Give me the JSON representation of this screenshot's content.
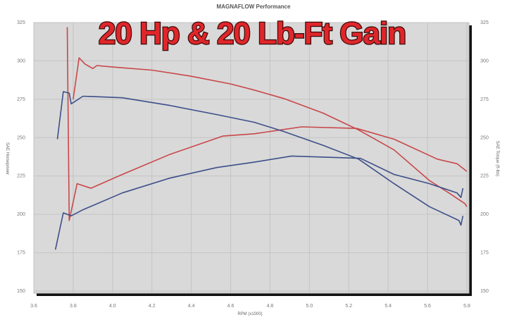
{
  "chart_data": {
    "type": "line",
    "title": "MAGNAFLOW Performance",
    "overlay_text": "20 Hp & 20 Lb-Ft Gain",
    "xlabel": "RPM (x1000)",
    "ylabel_left": "SAE Horsepower",
    "ylabel_right": "SAE Torque (ft-lbs)",
    "xlim": [
      3.6,
      5.8
    ],
    "ylim": [
      150,
      325
    ],
    "xticks": [
      "3.6",
      "3.8",
      "4.0",
      "4.2",
      "4.4",
      "4.6",
      "4.8",
      "5.0",
      "5.2",
      "5.4",
      "5.6",
      "5.8"
    ],
    "yticks": [
      "150",
      "175",
      "200",
      "225",
      "250",
      "275",
      "300",
      "325"
    ],
    "grid": true,
    "colors": {
      "red": "#c9474a",
      "blue": "#3d4f8a",
      "plot_bg": "#d9d9d9"
    },
    "series": [
      {
        "color": "red",
        "points": [
          [
            3.8,
            275
          ],
          [
            3.83,
            302
          ],
          [
            3.86,
            298
          ],
          [
            3.9,
            295
          ],
          [
            3.92,
            297
          ],
          [
            4.0,
            296
          ],
          [
            4.2,
            294
          ],
          [
            4.4,
            290
          ],
          [
            4.6,
            285
          ],
          [
            4.72,
            281
          ],
          [
            4.87,
            275.5
          ],
          [
            5.07,
            266
          ],
          [
            5.25,
            255
          ],
          [
            5.43,
            242
          ],
          [
            5.61,
            222
          ],
          [
            5.72,
            213
          ],
          [
            5.79,
            207
          ],
          [
            5.8,
            205
          ]
        ]
      },
      {
        "color": "red",
        "points": [
          [
            3.77,
            322
          ],
          [
            3.78,
            196
          ],
          [
            3.82,
            220
          ],
          [
            3.89,
            217
          ],
          [
            4.05,
            226
          ],
          [
            4.29,
            239
          ],
          [
            4.56,
            251
          ],
          [
            4.72,
            252.5
          ],
          [
            4.96,
            257
          ],
          [
            5.24,
            256
          ],
          [
            5.43,
            249
          ],
          [
            5.65,
            236
          ],
          [
            5.75,
            233
          ],
          [
            5.8,
            228
          ]
        ]
      },
      {
        "color": "blue",
        "points": [
          [
            3.72,
            249
          ],
          [
            3.75,
            280
          ],
          [
            3.78,
            279
          ],
          [
            3.79,
            272
          ],
          [
            3.85,
            277
          ],
          [
            4.05,
            276
          ],
          [
            4.29,
            271
          ],
          [
            4.53,
            265
          ],
          [
            4.72,
            260
          ],
          [
            4.87,
            254
          ],
          [
            5.07,
            245
          ],
          [
            5.25,
            236
          ],
          [
            5.43,
            220
          ],
          [
            5.61,
            205
          ],
          [
            5.76,
            196
          ],
          [
            5.77,
            193
          ],
          [
            5.78,
            199
          ]
        ]
      },
      {
        "color": "blue",
        "points": [
          [
            3.71,
            177
          ],
          [
            3.75,
            201
          ],
          [
            3.79,
            199
          ],
          [
            3.85,
            203
          ],
          [
            4.05,
            214
          ],
          [
            4.29,
            223.6
          ],
          [
            4.53,
            230.5
          ],
          [
            4.72,
            234
          ],
          [
            4.91,
            238
          ],
          [
            5.26,
            236.5
          ],
          [
            5.43,
            226
          ],
          [
            5.61,
            220
          ],
          [
            5.75,
            214
          ],
          [
            5.77,
            211
          ],
          [
            5.78,
            217
          ]
        ]
      }
    ]
  }
}
